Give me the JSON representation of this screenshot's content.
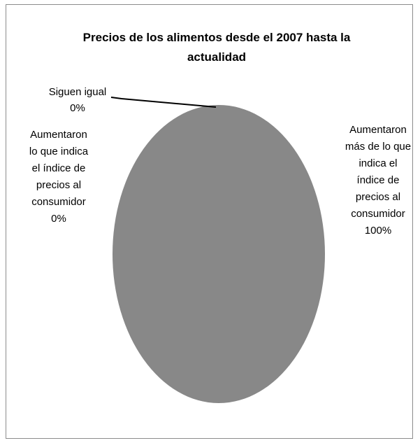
{
  "chart_data": {
    "type": "pie",
    "title_lines": [
      "Precios de los alimentos desde el 2007 hasta la",
      "actualidad"
    ],
    "slices": [
      {
        "label_lines": [
          "Siguen igual",
          "0%"
        ],
        "value": 0,
        "color": "#888888"
      },
      {
        "label_lines": [
          "Aumentaron",
          "lo que indica",
          "el índice de",
          "precios al",
          "consumidor",
          "0%"
        ],
        "value": 0,
        "color": "#888888"
      },
      {
        "label_lines": [
          "Aumentaron",
          "más de lo que",
          "indica el",
          "índice de",
          "precios al",
          "consumidor",
          "100%"
        ],
        "value": 100,
        "color": "#888888"
      }
    ],
    "legend": "none"
  }
}
